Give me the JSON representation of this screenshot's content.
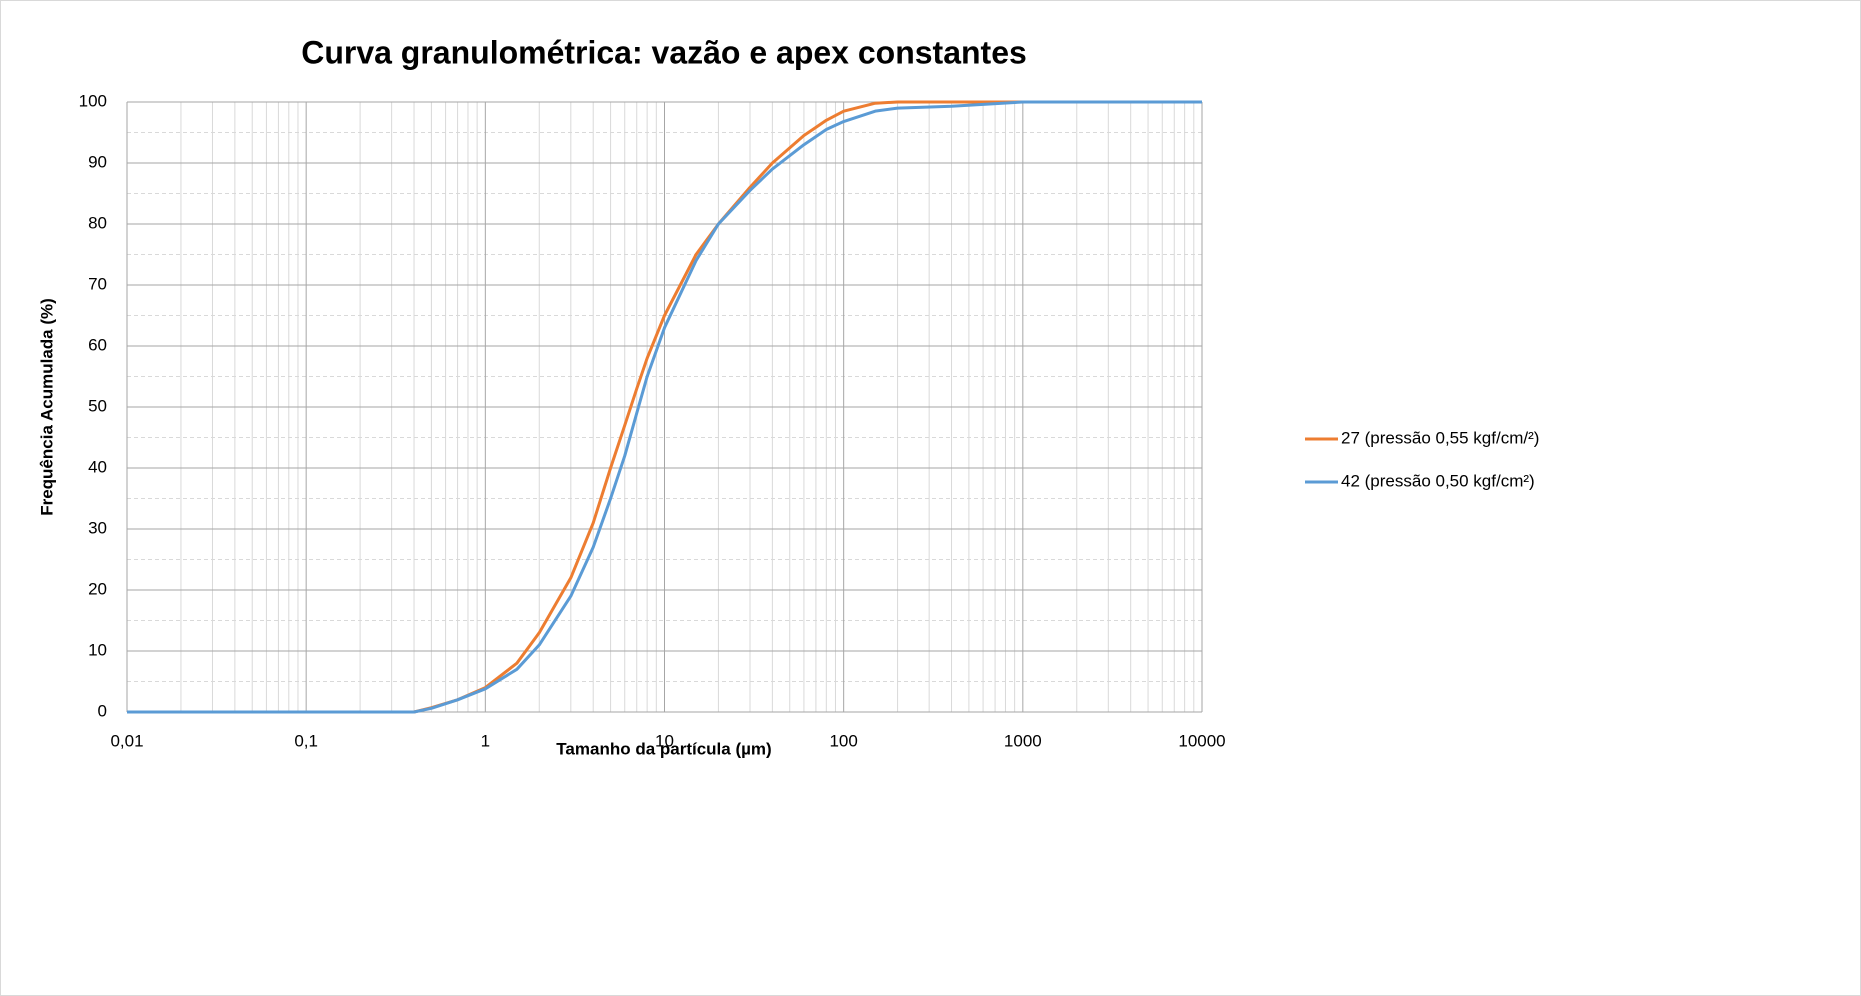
{
  "chart_data": {
    "type": "line",
    "title": "Curva granulométrica: vazão e apex constantes",
    "x_label": "Tamanho da partícula (µm)",
    "y_label": "Frequência Acumulada (%)",
    "x_log": true,
    "x": [
      0.01,
      0.4,
      0.5,
      0.7,
      1,
      1.5,
      2,
      3,
      4,
      5,
      6,
      7,
      8,
      10,
      15,
      20,
      30,
      40,
      60,
      80,
      100,
      150,
      200,
      400,
      1000,
      10000
    ],
    "series": [
      {
        "name": "27 (pressão 0,55 kgf/cm/²)",
        "color": "#ed7d31",
        "values": [
          0,
          0,
          0.7,
          2,
          4,
          8,
          13,
          22,
          31,
          40,
          47,
          53,
          58,
          65,
          75,
          80,
          86,
          90,
          94.5,
          97,
          98.5,
          99.8,
          100,
          100,
          100,
          100
        ]
      },
      {
        "name": "42 (pressão 0,50 kgf/cm²)",
        "color": "#5b9bd5",
        "values": [
          0,
          0,
          0.6,
          2,
          3.8,
          7,
          11,
          19,
          27,
          35,
          42,
          49,
          55,
          63,
          74,
          80,
          85.5,
          89,
          93,
          95.5,
          96.8,
          98.5,
          99,
          99.3,
          100,
          100
        ]
      }
    ],
    "xlim": [
      0.01,
      10000
    ],
    "xticks": [
      {
        "value": 0.01,
        "label": "0,01"
      },
      {
        "value": 0.1,
        "label": "0,1"
      },
      1,
      10,
      100,
      1000,
      10000
    ],
    "xminorticks": [
      0.02,
      0.03,
      0.04,
      0.05,
      0.06,
      0.07,
      0.08,
      0.09,
      0.2,
      0.3,
      0.4,
      0.5,
      0.6,
      0.7,
      0.8,
      0.9,
      2,
      3,
      4,
      5,
      6,
      7,
      8,
      9,
      20,
      30,
      40,
      50,
      60,
      70,
      80,
      90,
      200,
      300,
      400,
      500,
      600,
      700,
      800,
      900,
      2000,
      3000,
      4000,
      5000,
      6000,
      7000,
      8000,
      9000
    ],
    "ylim": [
      0,
      100
    ],
    "yticks": [
      0,
      10,
      20,
      30,
      40,
      50,
      60,
      70,
      80,
      90,
      100
    ],
    "yminorticks": [
      5,
      15,
      25,
      35,
      45,
      55,
      65,
      75,
      85,
      95
    ],
    "grid": true,
    "legend": "right"
  }
}
